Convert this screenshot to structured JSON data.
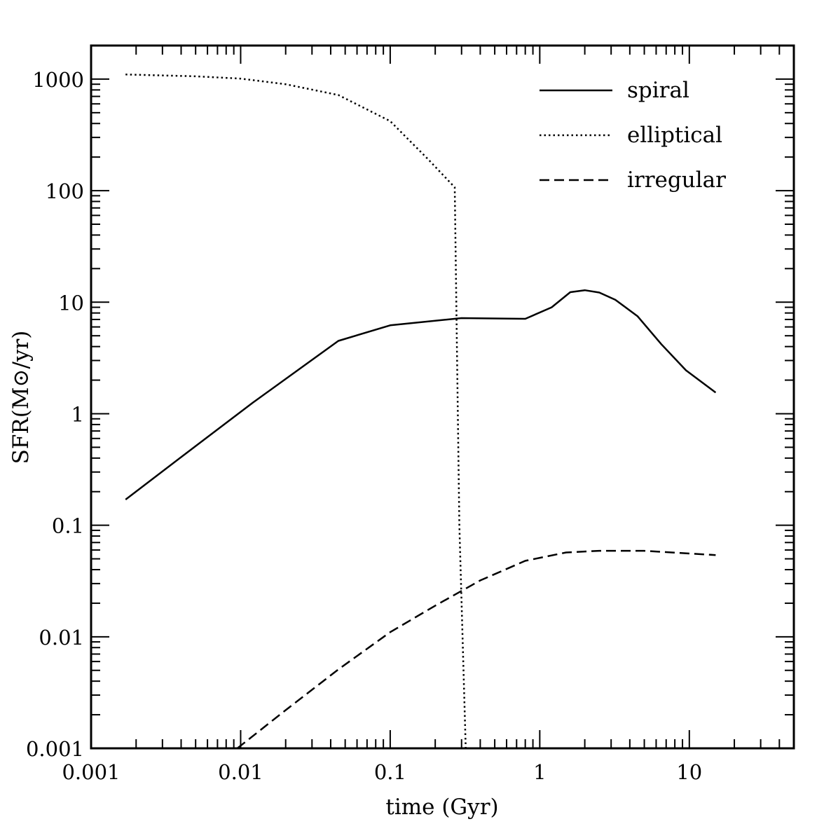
{
  "chart_data": {
    "type": "line",
    "title": "",
    "xlabel": "time (Gyr)",
    "ylabel": "SFR(M⊙/yr)",
    "x_scale": "log",
    "y_scale": "log",
    "xlim": [
      0.001,
      50
    ],
    "ylim": [
      0.001,
      2000
    ],
    "grid": false,
    "legend_position": "top-right",
    "x_ticks": [
      {
        "value": 0.001,
        "label": "0.001"
      },
      {
        "value": 0.01,
        "label": "0.01"
      },
      {
        "value": 0.1,
        "label": "0.1"
      },
      {
        "value": 1,
        "label": "1"
      },
      {
        "value": 10,
        "label": "10"
      }
    ],
    "y_ticks": [
      {
        "value": 0.001,
        "label": "0.001"
      },
      {
        "value": 0.01,
        "label": "0.01"
      },
      {
        "value": 0.1,
        "label": "0.1"
      },
      {
        "value": 1,
        "label": "1"
      },
      {
        "value": 10,
        "label": "10"
      },
      {
        "value": 100,
        "label": "100"
      },
      {
        "value": 1000,
        "label": "1000"
      }
    ],
    "series": [
      {
        "name": "spiral",
        "style": "solid",
        "points": [
          [
            0.0017,
            0.17
          ],
          [
            0.0045,
            0.46
          ],
          [
            0.012,
            1.25
          ],
          [
            0.045,
            4.5
          ],
          [
            0.1,
            6.2
          ],
          [
            0.3,
            7.2
          ],
          [
            0.8,
            7.1
          ],
          [
            1.2,
            9.0
          ],
          [
            1.6,
            12.3
          ],
          [
            2.0,
            12.8
          ],
          [
            2.5,
            12.2
          ],
          [
            3.2,
            10.5
          ],
          [
            4.5,
            7.5
          ],
          [
            6.5,
            4.2
          ],
          [
            9.5,
            2.45
          ],
          [
            15,
            1.55
          ]
        ]
      },
      {
        "name": "elliptical",
        "style": "dotted",
        "points": [
          [
            0.0017,
            1100
          ],
          [
            0.005,
            1060
          ],
          [
            0.01,
            1010
          ],
          [
            0.02,
            900
          ],
          [
            0.045,
            720
          ],
          [
            0.1,
            420
          ],
          [
            0.18,
            190
          ],
          [
            0.27,
            107
          ],
          [
            0.29,
            0.1
          ],
          [
            0.32,
            0.001
          ]
        ]
      },
      {
        "name": "irregular",
        "style": "dashed",
        "points": [
          [
            0.0095,
            0.001
          ],
          [
            0.02,
            0.0022
          ],
          [
            0.045,
            0.0051
          ],
          [
            0.1,
            0.011
          ],
          [
            0.2,
            0.019
          ],
          [
            0.4,
            0.032
          ],
          [
            0.8,
            0.048
          ],
          [
            1.5,
            0.057
          ],
          [
            2.5,
            0.059
          ],
          [
            5,
            0.059
          ],
          [
            15,
            0.054
          ]
        ]
      }
    ]
  }
}
